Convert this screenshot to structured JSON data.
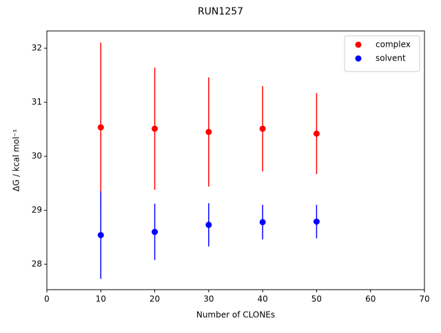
{
  "chart_data": {
    "type": "errorbar",
    "title": "RUN1257",
    "xlabel": "Number of CLONEs",
    "ylabel": "ΔG / kcal mol⁻¹",
    "x": [
      10,
      20,
      30,
      40,
      50
    ],
    "series": [
      {
        "name": "complex",
        "color": "#ff0000",
        "values": [
          30.535,
          30.51,
          30.45,
          30.51,
          30.42
        ],
        "errors": [
          1.57,
          1.13,
          1.01,
          0.79,
          0.75
        ]
      },
      {
        "name": "solvent",
        "color": "#0000ff",
        "values": [
          28.54,
          28.6,
          28.73,
          28.78,
          28.79
        ],
        "errors": [
          0.81,
          0.52,
          0.4,
          0.32,
          0.31
        ]
      }
    ],
    "xlim": [
      0,
      70
    ],
    "xticks": [
      0,
      10,
      20,
      30,
      40,
      50,
      60,
      70
    ],
    "ylim": [
      27.53,
      32.32
    ],
    "yticks": [
      28,
      29,
      30,
      31,
      32
    ],
    "legend": "upper right",
    "grid": false
  }
}
